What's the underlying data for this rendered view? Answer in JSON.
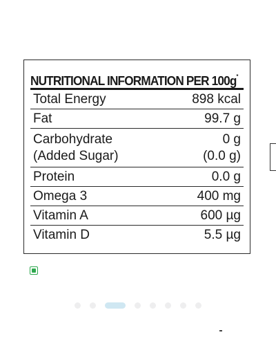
{
  "label": {
    "title": "NUTRITIONAL INFORMATION PER 100g",
    "title_marker": "*",
    "rows": [
      {
        "name": "Total Energy",
        "value": "898 kcal"
      },
      {
        "name": "Fat",
        "value": "99.7 g"
      },
      {
        "name": "Carbohydrate",
        "name_sub": "(Added Sugar)",
        "value": "0 g",
        "value_sub": "(0.0 g)"
      },
      {
        "name": "Protein",
        "value": "0.0 g"
      },
      {
        "name": "Omega 3",
        "value": "400 mg"
      },
      {
        "name": "Vitamin A",
        "value": "600 µg"
      },
      {
        "name": "Vitamin D",
        "value": "5.5 µg"
      }
    ]
  },
  "veg_mark": {
    "icon": "veg-symbol-icon",
    "color": "#2fa84f"
  },
  "carousel": {
    "total_slides": 8,
    "active_index": 2,
    "active_color": "#cfe7f2",
    "inactive_color": "#eeeeef"
  }
}
